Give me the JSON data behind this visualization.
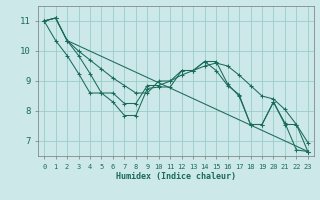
{
  "xlabel": "Humidex (Indice chaleur)",
  "bg_color": "#cce8e8",
  "grid_color": "#99cccc",
  "line_color": "#1a6b5a",
  "xlim": [
    -0.5,
    23.5
  ],
  "ylim": [
    6.5,
    11.5
  ],
  "yticks": [
    7,
    8,
    9,
    10,
    11
  ],
  "xticks": [
    0,
    1,
    2,
    3,
    4,
    5,
    6,
    7,
    8,
    9,
    10,
    11,
    12,
    13,
    14,
    15,
    16,
    17,
    18,
    19,
    20,
    21,
    22,
    23
  ],
  "series": [
    {
      "x": [
        0,
        1,
        2,
        3,
        4,
        5,
        6,
        7,
        8,
        9,
        10,
        11,
        12,
        13,
        14,
        15,
        16,
        17,
        18,
        19,
        20,
        21,
        22,
        23
      ],
      "y": [
        11.0,
        11.1,
        10.35,
        9.85,
        9.25,
        8.6,
        8.3,
        7.85,
        7.85,
        8.75,
        8.8,
        8.8,
        9.35,
        9.35,
        9.65,
        9.35,
        8.85,
        8.55,
        7.55,
        7.55,
        8.3,
        7.6,
        6.7,
        6.65
      ]
    },
    {
      "x": [
        0,
        1,
        2,
        23
      ],
      "y": [
        11.0,
        11.1,
        10.35,
        6.65
      ]
    },
    {
      "x": [
        0,
        1,
        2,
        3,
        4,
        5,
        6,
        7,
        8,
        9,
        10,
        11,
        12,
        13,
        14,
        15,
        16,
        17,
        18,
        19,
        20,
        21,
        22,
        23
      ],
      "y": [
        11.0,
        11.1,
        10.35,
        10.0,
        9.7,
        9.4,
        9.1,
        8.85,
        8.6,
        8.6,
        9.0,
        9.0,
        9.2,
        9.35,
        9.5,
        9.6,
        9.5,
        9.2,
        8.85,
        8.5,
        8.4,
        8.05,
        7.55,
        6.95
      ]
    },
    {
      "x": [
        0,
        1,
        2,
        3,
        4,
        5,
        6,
        7,
        8,
        9,
        10,
        11,
        12,
        13,
        14,
        15,
        16,
        17,
        18,
        19,
        20,
        21,
        22,
        23
      ],
      "y": [
        11.0,
        10.35,
        9.85,
        9.25,
        8.6,
        8.6,
        8.6,
        8.25,
        8.25,
        8.85,
        8.85,
        9.0,
        9.35,
        9.35,
        9.65,
        9.65,
        8.9,
        8.5,
        7.55,
        7.55,
        8.3,
        7.55,
        7.55,
        6.65
      ]
    }
  ]
}
